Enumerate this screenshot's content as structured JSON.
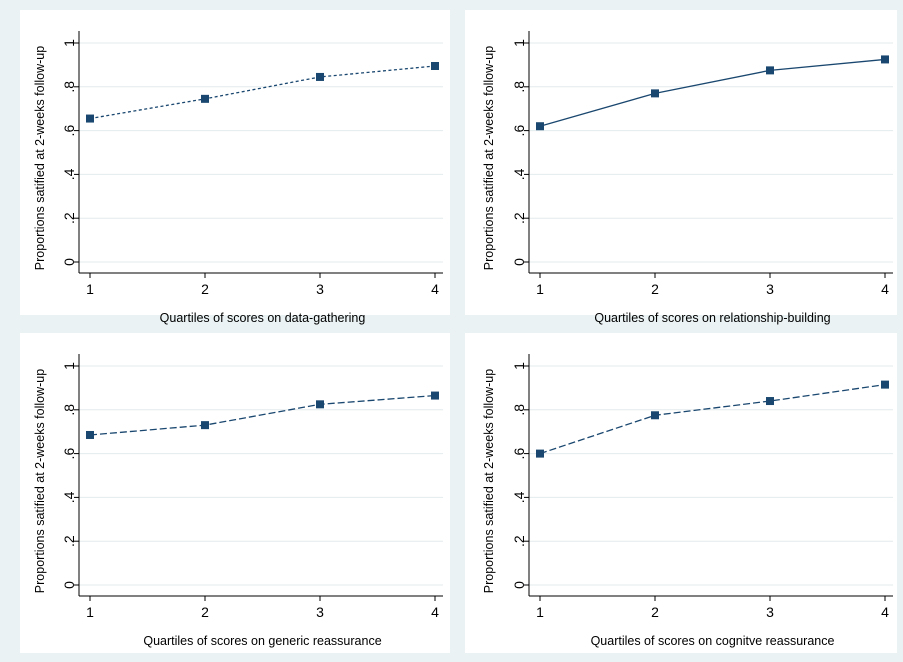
{
  "chart_data": [
    {
      "type": "line",
      "xlabel": "Quartiles of scores on data-gathering",
      "ylabel": "Proportions satified at 2-weeks follow-up",
      "x": [
        1,
        2,
        3,
        4
      ],
      "y": [
        0.655,
        0.745,
        0.845,
        0.895
      ],
      "xticks": [
        "1",
        "2",
        "3",
        "4"
      ],
      "yticks": [
        "0",
        ".2",
        ".4",
        ".6",
        ".8",
        "1"
      ],
      "xlim": [
        1,
        4
      ],
      "ylim": [
        0,
        1
      ],
      "line_style": "short-dash",
      "grid": true
    },
    {
      "type": "line",
      "xlabel": "Quartiles of scores on relationship-building",
      "ylabel": "Proportions satified at 2-weeks follow-up",
      "x": [
        1,
        2,
        3,
        4
      ],
      "y": [
        0.62,
        0.77,
        0.875,
        0.925
      ],
      "xticks": [
        "1",
        "2",
        "3",
        "4"
      ],
      "yticks": [
        "0",
        ".2",
        ".4",
        ".6",
        ".8",
        "1"
      ],
      "xlim": [
        1,
        4
      ],
      "ylim": [
        0,
        1
      ],
      "line_style": "solid",
      "grid": true
    },
    {
      "type": "line",
      "xlabel": "Quartiles of scores on generic reassurance",
      "ylabel": "Proportions satified at 2-weeks follow-up",
      "x": [
        1,
        2,
        3,
        4
      ],
      "y": [
        0.685,
        0.73,
        0.825,
        0.865
      ],
      "xticks": [
        "1",
        "2",
        "3",
        "4"
      ],
      "yticks": [
        "0",
        ".2",
        ".4",
        ".6",
        ".8",
        "1"
      ],
      "xlim": [
        1,
        4
      ],
      "ylim": [
        0,
        1
      ],
      "line_style": "long-dash",
      "grid": true
    },
    {
      "type": "line",
      "xlabel": "Quartiles of scores on cognitve reassurance",
      "ylabel": "Proportions satified at 2-weeks follow-up",
      "x": [
        1,
        2,
        3,
        4
      ],
      "y": [
        0.6,
        0.775,
        0.84,
        0.915
      ],
      "xticks": [
        "1",
        "2",
        "3",
        "4"
      ],
      "yticks": [
        "0",
        ".2",
        ".4",
        ".6",
        ".8",
        "1"
      ],
      "xlim": [
        1,
        4
      ],
      "ylim": [
        0,
        1
      ],
      "line_style": "long-dash",
      "grid": true
    }
  ]
}
